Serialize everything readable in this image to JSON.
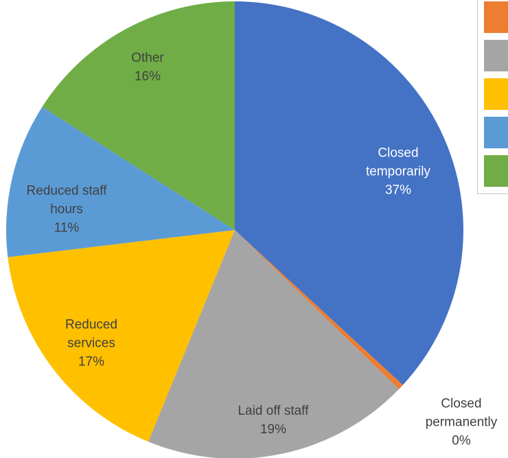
{
  "chart_data": {
    "type": "pie",
    "categories": [
      "Closed temporarily",
      "Closed permanently",
      "Laid off staff",
      "Reduced services",
      "Reduced staff hours",
      "Other"
    ],
    "values": [
      37,
      0.4,
      19,
      17,
      11,
      16
    ],
    "value_labels": [
      "37%",
      "0%",
      "19%",
      "17%",
      "11%",
      "16%"
    ],
    "colors": [
      "#4472c4",
      "#ed7d31",
      "#a5a5a5",
      "#ffc000",
      "#5b9bd5",
      "#70ad47"
    ]
  }
}
